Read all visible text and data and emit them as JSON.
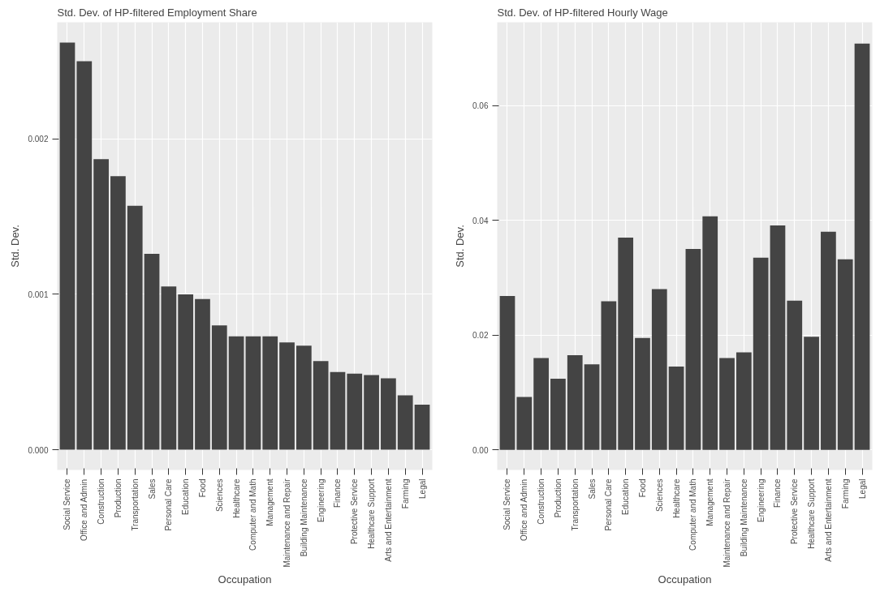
{
  "chart_data": [
    {
      "type": "bar",
      "title": "Std. Dev. of HP-filtered Employment Share",
      "xlabel": "Occupation",
      "ylabel": "Std. Dev.",
      "categories": [
        "Social Service",
        "Office and Admin",
        "Construction",
        "Production",
        "Transportation",
        "Sales",
        "Personal Care",
        "Education",
        "Food",
        "Sciences",
        "Healthcare",
        "Computer and Math",
        "Management",
        "Maintenance and Repair",
        "Building Maintenance",
        "Engineering",
        "Finance",
        "Protective Service",
        "Healthcare Support",
        "Arts and Entertainment",
        "Farming",
        "Legal"
      ],
      "values": [
        0.00262,
        0.0025,
        0.00187,
        0.00176,
        0.00157,
        0.00126,
        0.00105,
        0.001,
        0.00097,
        0.0008,
        0.00073,
        0.00073,
        0.00073,
        0.00069,
        0.00067,
        0.00057,
        0.0005,
        0.00049,
        0.00048,
        0.00046,
        0.00035,
        0.00029
      ],
      "color": "#444444",
      "ylim": [
        -0.00013,
        0.00275
      ],
      "yticks": [
        {
          "value": 0,
          "label": "0.000"
        },
        {
          "value": 0.001,
          "label": "0.001"
        },
        {
          "value": 0.002,
          "label": "0.002"
        }
      ],
      "grid": true
    },
    {
      "type": "bar",
      "title": "Std. Dev. of HP-filtered Hourly Wage",
      "xlabel": "Occupation",
      "ylabel": "Std. Dev.",
      "categories": [
        "Social Service",
        "Office and Admin",
        "Construction",
        "Production",
        "Transportation",
        "Sales",
        "Personal Care",
        "Education",
        "Food",
        "Sciences",
        "Healthcare",
        "Computer and Math",
        "Management",
        "Maintenance and Repair",
        "Building Maintenance",
        "Engineering",
        "Finance",
        "Protective Service",
        "Healthcare Support",
        "Arts and Entertainment",
        "Farming",
        "Legal"
      ],
      "values": [
        0.0268,
        0.0092,
        0.016,
        0.0124,
        0.0165,
        0.0149,
        0.0259,
        0.037,
        0.0195,
        0.028,
        0.0145,
        0.035,
        0.0407,
        0.016,
        0.017,
        0.0335,
        0.0391,
        0.026,
        0.0197,
        0.038,
        0.0332,
        0.0708
      ],
      "color": "#444444",
      "ylim": [
        -0.0035,
        0.0745
      ],
      "yticks": [
        {
          "value": 0,
          "label": "0.00"
        },
        {
          "value": 0.02,
          "label": "0.02"
        },
        {
          "value": 0.04,
          "label": "0.04"
        },
        {
          "value": 0.06,
          "label": "0.06"
        }
      ],
      "grid": true
    }
  ]
}
